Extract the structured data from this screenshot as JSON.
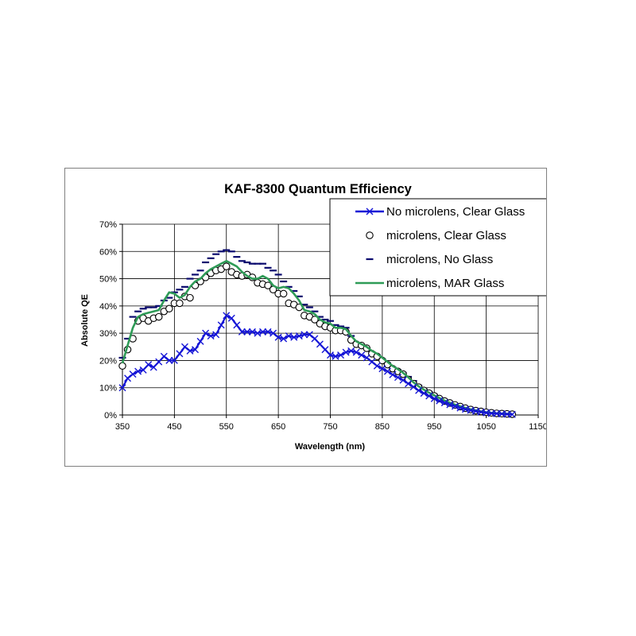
{
  "chart_data": {
    "type": "line",
    "title": "KAF-8300 Quantum Efficiency",
    "xlabel": "Wavelength (nm)",
    "ylabel": "Absolute QE",
    "xlim": [
      350,
      1150
    ],
    "ylim": [
      0,
      0.7
    ],
    "x_ticks": [
      350,
      450,
      550,
      650,
      750,
      850,
      950,
      1050,
      1150
    ],
    "x_tick_labels": [
      "350",
      "450",
      "550",
      "650",
      "750",
      "850",
      "950",
      "1050",
      "1150"
    ],
    "y_ticks": [
      0,
      0.1,
      0.2,
      0.3,
      0.4,
      0.5,
      0.6,
      0.7
    ],
    "y_tick_labels": [
      "0%",
      "10%",
      "20%",
      "30%",
      "40%",
      "50%",
      "60%",
      "70%"
    ],
    "grid": true,
    "legend_position": "top-right",
    "series": [
      {
        "name": "No microlens, Clear Glass",
        "color": "#1515d6",
        "marker": "x",
        "line": true,
        "x": [
          350,
          360,
          370,
          380,
          390,
          400,
          410,
          420,
          430,
          440,
          450,
          460,
          470,
          480,
          490,
          500,
          510,
          520,
          530,
          540,
          550,
          560,
          570,
          580,
          590,
          600,
          610,
          620,
          630,
          640,
          650,
          660,
          670,
          680,
          690,
          700,
          710,
          720,
          730,
          740,
          750,
          760,
          770,
          780,
          790,
          800,
          810,
          820,
          830,
          840,
          850,
          860,
          870,
          880,
          890,
          900,
          910,
          920,
          930,
          940,
          950,
          960,
          970,
          980,
          990,
          1000,
          1010,
          1020,
          1030,
          1040,
          1050,
          1060,
          1070,
          1080,
          1090,
          1100
        ],
        "y": [
          0.1,
          0.135,
          0.15,
          0.16,
          0.165,
          0.185,
          0.175,
          0.195,
          0.215,
          0.2,
          0.2,
          0.225,
          0.25,
          0.235,
          0.24,
          0.27,
          0.3,
          0.29,
          0.295,
          0.33,
          0.365,
          0.355,
          0.33,
          0.305,
          0.305,
          0.305,
          0.3,
          0.305,
          0.305,
          0.3,
          0.285,
          0.28,
          0.29,
          0.285,
          0.29,
          0.295,
          0.295,
          0.28,
          0.26,
          0.24,
          0.22,
          0.215,
          0.22,
          0.23,
          0.235,
          0.23,
          0.22,
          0.21,
          0.195,
          0.18,
          0.17,
          0.16,
          0.148,
          0.138,
          0.128,
          0.115,
          0.103,
          0.09,
          0.08,
          0.07,
          0.06,
          0.052,
          0.045,
          0.038,
          0.032,
          0.026,
          0.021,
          0.017,
          0.014,
          0.011,
          0.008,
          0.006,
          0.005,
          0.004,
          0.003,
          0.002
        ]
      },
      {
        "name": "microlens, Clear Glass",
        "color": "#000000",
        "marker": "circle",
        "line": false,
        "x": [
          350,
          360,
          370,
          380,
          390,
          400,
          410,
          420,
          430,
          440,
          450,
          460,
          470,
          480,
          490,
          500,
          510,
          520,
          530,
          540,
          550,
          560,
          570,
          580,
          590,
          600,
          610,
          620,
          630,
          640,
          650,
          660,
          670,
          680,
          690,
          700,
          710,
          720,
          730,
          740,
          750,
          760,
          770,
          780,
          790,
          800,
          810,
          820,
          830,
          840,
          850,
          860,
          870,
          880,
          890,
          900,
          910,
          920,
          930,
          940,
          950,
          960,
          970,
          980,
          990,
          1000,
          1010,
          1020,
          1030,
          1040,
          1050,
          1060,
          1070,
          1080,
          1090,
          1100
        ],
        "y": [
          0.18,
          0.24,
          0.28,
          0.345,
          0.355,
          0.345,
          0.355,
          0.36,
          0.38,
          0.39,
          0.41,
          0.41,
          0.435,
          0.43,
          0.475,
          0.49,
          0.505,
          0.52,
          0.53,
          0.535,
          0.545,
          0.525,
          0.515,
          0.51,
          0.515,
          0.505,
          0.485,
          0.48,
          0.475,
          0.46,
          0.445,
          0.445,
          0.41,
          0.405,
          0.395,
          0.365,
          0.36,
          0.35,
          0.335,
          0.325,
          0.32,
          0.31,
          0.31,
          0.305,
          0.275,
          0.26,
          0.255,
          0.245,
          0.225,
          0.215,
          0.2,
          0.185,
          0.17,
          0.16,
          0.15,
          0.13,
          0.115,
          0.102,
          0.09,
          0.08,
          0.07,
          0.06,
          0.051,
          0.044,
          0.037,
          0.031,
          0.025,
          0.02,
          0.016,
          0.013,
          0.01,
          0.008,
          0.006,
          0.005,
          0.004,
          0.003
        ]
      },
      {
        "name": "microlens, No Glass",
        "color": "#0a0a6e",
        "marker": "dash",
        "line": false,
        "x": [
          350,
          360,
          370,
          380,
          390,
          400,
          410,
          420,
          430,
          440,
          450,
          460,
          470,
          480,
          490,
          500,
          510,
          520,
          530,
          540,
          550,
          560,
          570,
          580,
          590,
          600,
          610,
          620,
          630,
          640,
          650,
          660,
          670,
          680,
          690,
          700,
          710,
          720,
          730,
          740,
          750,
          760,
          770,
          780,
          790,
          800,
          810,
          820,
          830,
          840,
          850,
          860,
          870,
          880,
          890,
          900,
          910,
          920,
          930,
          940,
          950,
          960,
          970,
          980,
          990,
          1000,
          1010,
          1020,
          1030,
          1040,
          1050,
          1060,
          1070,
          1080,
          1090,
          1100
        ],
        "y": [
          0.21,
          0.28,
          0.36,
          0.38,
          0.39,
          0.395,
          0.395,
          0.4,
          0.42,
          0.43,
          0.45,
          0.46,
          0.47,
          0.5,
          0.515,
          0.53,
          0.56,
          0.575,
          0.59,
          0.6,
          0.605,
          0.6,
          0.58,
          0.565,
          0.56,
          0.555,
          0.555,
          0.555,
          0.54,
          0.53,
          0.515,
          0.49,
          0.47,
          0.455,
          0.435,
          0.405,
          0.395,
          0.38,
          0.36,
          0.35,
          0.345,
          0.33,
          0.325,
          0.32,
          0.29,
          0.265,
          0.255,
          0.245,
          0.23,
          0.22,
          0.205,
          0.19,
          0.175,
          0.165,
          0.155,
          0.14,
          0.125,
          0.108,
          0.095,
          0.085,
          0.075,
          0.063,
          0.054,
          0.046,
          0.039,
          0.033,
          0.027,
          0.022,
          0.017,
          0.014,
          0.011,
          0.009,
          0.007,
          0.005,
          0.004,
          0.003
        ]
      },
      {
        "name": "microlens, MAR Glass",
        "color": "#2e9b57",
        "marker": "none",
        "line": true,
        "x": [
          350,
          360,
          370,
          380,
          390,
          400,
          410,
          420,
          430,
          440,
          450,
          460,
          470,
          480,
          490,
          500,
          510,
          520,
          530,
          540,
          550,
          560,
          570,
          580,
          590,
          600,
          610,
          620,
          630,
          640,
          650,
          660,
          670,
          680,
          690,
          700,
          710,
          720,
          730,
          740,
          750,
          760,
          770,
          780,
          790,
          800,
          810,
          820,
          830,
          840,
          850,
          860,
          870,
          880,
          890,
          900,
          910,
          920,
          930,
          940,
          950,
          960,
          970,
          980,
          990,
          1000,
          1010,
          1020,
          1030,
          1040,
          1050,
          1060,
          1070,
          1080,
          1090,
          1100
        ],
        "y": [
          0.19,
          0.255,
          0.32,
          0.36,
          0.37,
          0.375,
          0.38,
          0.385,
          0.42,
          0.45,
          0.445,
          0.43,
          0.44,
          0.47,
          0.49,
          0.5,
          0.52,
          0.535,
          0.545,
          0.555,
          0.565,
          0.555,
          0.545,
          0.525,
          0.51,
          0.5,
          0.5,
          0.51,
          0.5,
          0.475,
          0.465,
          0.47,
          0.465,
          0.445,
          0.42,
          0.385,
          0.38,
          0.37,
          0.35,
          0.34,
          0.335,
          0.32,
          0.32,
          0.315,
          0.29,
          0.27,
          0.26,
          0.25,
          0.235,
          0.225,
          0.21,
          0.195,
          0.18,
          0.168,
          0.155,
          0.138,
          0.12,
          0.105,
          0.093,
          0.082,
          0.072,
          0.062,
          0.053,
          0.045,
          0.038,
          0.032,
          0.026,
          0.021,
          0.017,
          0.013,
          0.01,
          0.008,
          0.006,
          0.005,
          0.004,
          0.003
        ]
      }
    ]
  }
}
